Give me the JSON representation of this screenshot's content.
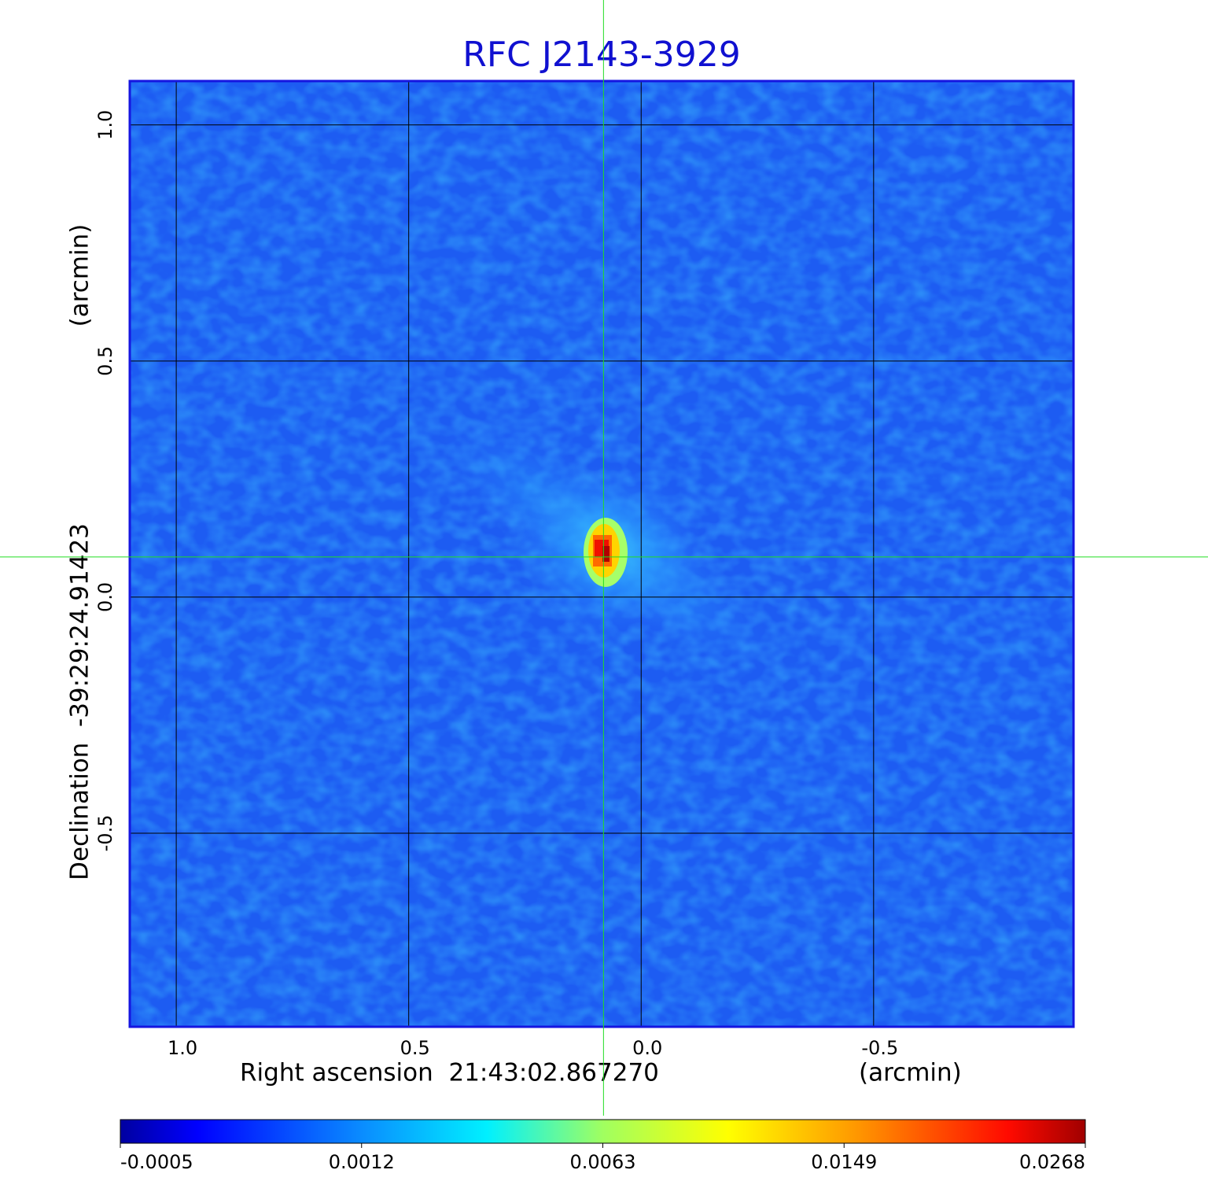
{
  "chart_data": {
    "type": "image",
    "title": "RFC J2143-3929",
    "x_label": "Right ascension  21:43:02.867270",
    "x_unit": "(arcmin)",
    "y_label": "Declination  -39:29:24.91423",
    "y_unit": "(arcmin)",
    "xlim": [
      1.1,
      -0.93
    ],
    "ylim": [
      -0.91,
      1.093
    ],
    "xticks": [
      {
        "value": 1,
        "label": "1.0"
      },
      0.5,
      {
        "value": 0,
        "label": "0.0"
      },
      -0.5
    ],
    "yticks": [
      -0.5,
      {
        "value": 0,
        "label": "0.0"
      },
      0.5,
      {
        "value": 1,
        "label": "1.0"
      }
    ],
    "grid": true,
    "crosshair": {
      "x": 0.081,
      "y": 0.085,
      "color": "#22dd22"
    },
    "colorbar": {
      "ticks": [
        -0.0005,
        0.0012,
        0.0063,
        0.0149,
        0.0268
      ]
    }
  }
}
